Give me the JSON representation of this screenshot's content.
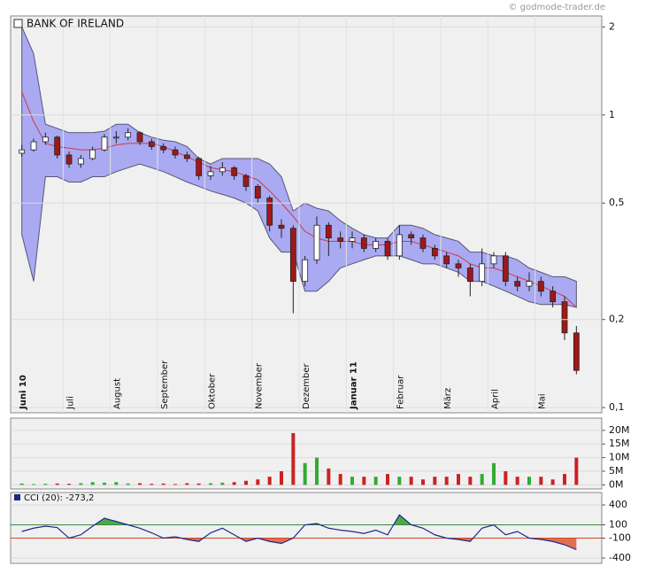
{
  "watermark": "© godmode-trader.de",
  "chart_data": [
    {
      "type": "candlestick",
      "title": "BANK OF IRELAND",
      "log_scale": true,
      "grid": true,
      "categories": [
        "Juni 10",
        "Juli",
        "August",
        "September",
        "Oktober",
        "November",
        "Dezember",
        "Januar 11",
        "Februar",
        "März",
        "April",
        "Mai"
      ],
      "open": [
        0.74,
        0.76,
        0.81,
        0.84,
        0.73,
        0.68,
        0.71,
        0.76,
        0.84,
        0.84,
        0.87,
        0.81,
        0.78,
        0.76,
        0.73,
        0.71,
        0.62,
        0.64,
        0.66,
        0.62,
        0.57,
        0.52,
        0.42,
        0.41,
        0.27,
        0.32,
        0.42,
        0.38,
        0.37,
        0.38,
        0.35,
        0.37,
        0.33,
        0.39,
        0.38,
        0.35,
        0.33,
        0.31,
        0.3,
        0.27,
        0.31,
        0.33,
        0.27,
        0.26,
        0.27,
        0.25,
        0.23,
        0.18
      ],
      "high": [
        0.79,
        0.83,
        0.87,
        0.85,
        0.75,
        0.73,
        0.78,
        0.86,
        0.88,
        0.9,
        0.88,
        0.83,
        0.8,
        0.78,
        0.75,
        0.72,
        0.67,
        0.69,
        0.67,
        0.63,
        0.58,
        0.53,
        0.44,
        0.42,
        0.33,
        0.45,
        0.43,
        0.4,
        0.4,
        0.39,
        0.38,
        0.38,
        0.42,
        0.4,
        0.39,
        0.36,
        0.34,
        0.32,
        0.31,
        0.35,
        0.34,
        0.34,
        0.28,
        0.29,
        0.28,
        0.26,
        0.24,
        0.19
      ],
      "low": [
        0.72,
        0.75,
        0.79,
        0.71,
        0.66,
        0.66,
        0.7,
        0.75,
        0.8,
        0.82,
        0.79,
        0.76,
        0.74,
        0.71,
        0.69,
        0.6,
        0.6,
        0.62,
        0.6,
        0.55,
        0.5,
        0.4,
        0.38,
        0.21,
        0.26,
        0.31,
        0.33,
        0.35,
        0.35,
        0.34,
        0.34,
        0.32,
        0.32,
        0.36,
        0.34,
        0.32,
        0.3,
        0.28,
        0.24,
        0.26,
        0.3,
        0.26,
        0.25,
        0.25,
        0.24,
        0.22,
        0.17,
        0.13
      ],
      "close": [
        0.76,
        0.81,
        0.84,
        0.73,
        0.68,
        0.71,
        0.76,
        0.84,
        0.84,
        0.87,
        0.81,
        0.78,
        0.76,
        0.73,
        0.71,
        0.62,
        0.64,
        0.66,
        0.62,
        0.57,
        0.52,
        0.42,
        0.41,
        0.27,
        0.32,
        0.42,
        0.38,
        0.37,
        0.38,
        0.35,
        0.37,
        0.33,
        0.39,
        0.38,
        0.35,
        0.33,
        0.31,
        0.3,
        0.27,
        0.31,
        0.33,
        0.27,
        0.26,
        0.27,
        0.25,
        0.23,
        0.18,
        0.134
      ],
      "upper": [
        2.0,
        1.62,
        0.93,
        0.9,
        0.87,
        0.87,
        0.87,
        0.88,
        0.93,
        0.93,
        0.87,
        0.84,
        0.82,
        0.81,
        0.78,
        0.71,
        0.68,
        0.71,
        0.71,
        0.71,
        0.71,
        0.68,
        0.615,
        0.47,
        0.5,
        0.48,
        0.47,
        0.435,
        0.41,
        0.39,
        0.38,
        0.38,
        0.42,
        0.42,
        0.41,
        0.39,
        0.38,
        0.37,
        0.34,
        0.34,
        0.33,
        0.33,
        0.32,
        0.3,
        0.29,
        0.28,
        0.28,
        0.27
      ],
      "middle": [
        1.2,
        0.95,
        0.8,
        0.78,
        0.77,
        0.76,
        0.76,
        0.77,
        0.79,
        0.8,
        0.8,
        0.8,
        0.78,
        0.75,
        0.72,
        0.69,
        0.66,
        0.65,
        0.64,
        0.62,
        0.6,
        0.55,
        0.5,
        0.45,
        0.4,
        0.38,
        0.37,
        0.37,
        0.37,
        0.36,
        0.36,
        0.36,
        0.37,
        0.37,
        0.36,
        0.35,
        0.34,
        0.33,
        0.31,
        0.3,
        0.3,
        0.29,
        0.28,
        0.27,
        0.26,
        0.25,
        0.24,
        0.22
      ],
      "lower": [
        0.39,
        0.27,
        0.615,
        0.615,
        0.59,
        0.59,
        0.615,
        0.615,
        0.64,
        0.66,
        0.68,
        0.66,
        0.64,
        0.615,
        0.59,
        0.57,
        0.55,
        0.535,
        0.52,
        0.5,
        0.47,
        0.38,
        0.34,
        0.34,
        0.25,
        0.25,
        0.27,
        0.3,
        0.31,
        0.32,
        0.33,
        0.33,
        0.33,
        0.32,
        0.31,
        0.31,
        0.3,
        0.29,
        0.27,
        0.27,
        0.26,
        0.25,
        0.24,
        0.23,
        0.225,
        0.225,
        0.225,
        0.22
      ],
      "up_color": "#ffffff",
      "down_color": "#a01818",
      "band_color": "#aaaaf2",
      "middle_color": "#d03848",
      "ylim": [
        0.096,
        2.18
      ],
      "yticks": [
        {
          "value": 0.1,
          "label": "0,1"
        },
        {
          "value": 0.2,
          "label": "0,2"
        },
        {
          "value": 0.5,
          "label": "0,5"
        },
        1,
        2
      ]
    },
    {
      "type": "bar",
      "grid": true,
      "up_color": "#33aa33",
      "down_color": "#cc2222",
      "values": [
        0.5,
        0.3,
        0.4,
        0.5,
        0.4,
        0.6,
        1,
        0.8,
        1,
        0.5,
        0.6,
        0.4,
        0.5,
        0.3,
        0.6,
        0.5,
        0.6,
        0.8,
        1,
        1.5,
        2,
        3,
        5,
        19,
        8,
        10,
        6,
        4,
        3,
        3,
        3,
        4,
        3,
        3,
        2,
        3,
        3,
        4,
        3,
        4,
        8,
        5,
        3,
        3,
        3,
        2,
        4,
        10
      ],
      "ylim": [
        -1.5,
        24.5
      ],
      "yticks": [
        {
          "value": 0,
          "label": "0M"
        },
        {
          "value": 5,
          "label": "5M"
        },
        {
          "value": 10,
          "label": "10M"
        },
        {
          "value": 15,
          "label": "15M"
        },
        {
          "value": 20,
          "label": "20M"
        }
      ]
    },
    {
      "type": "line",
      "legend": "CCI (20): -273,2",
      "color": "#1a2a8a",
      "grid": true,
      "values": [
        0,
        50,
        80,
        60,
        -100,
        -50,
        80,
        200,
        150,
        100,
        50,
        -20,
        -100,
        -80,
        -120,
        -150,
        -20,
        50,
        -50,
        -150,
        -100,
        -150,
        -180,
        -100,
        100,
        120,
        50,
        20,
        0,
        -30,
        20,
        -50,
        250,
        100,
        50,
        -50,
        -100,
        -120,
        -150,
        50,
        100,
        -50,
        0,
        -100,
        -120,
        -150,
        -200,
        -273.2
      ],
      "levels": [
        100,
        -100
      ],
      "level_colors": [
        "#3a8a3a",
        "#d04828"
      ],
      "ylim": [
        -480,
        587
      ],
      "yticks": [
        400,
        100,
        -100,
        -400
      ]
    }
  ]
}
